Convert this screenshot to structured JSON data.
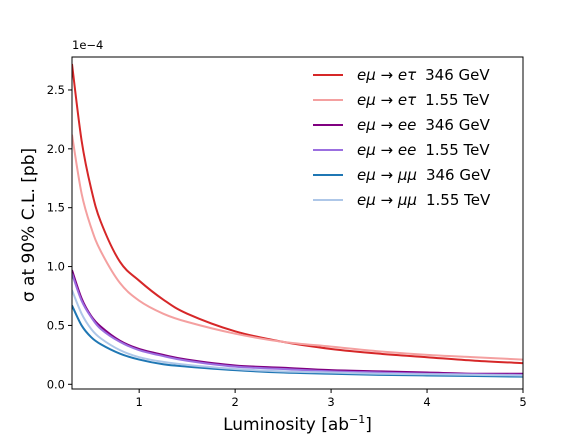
{
  "chart_data": {
    "type": "line",
    "title": "",
    "xlabel": "Luminosity [ab",
    "xlabel_sup": "−1",
    "xlabel_close": "]",
    "ylabel": "σ at 90% C.L. [pb]",
    "y_offset_text": "1e−4",
    "xlim": [
      0.3,
      5.0
    ],
    "ylim": [
      -0.04,
      2.78
    ],
    "xticks": [
      1,
      2,
      3,
      4,
      5
    ],
    "xtick_labels": [
      "1",
      "2",
      "3",
      "4",
      "5"
    ],
    "yticks": [
      0.0,
      0.5,
      1.0,
      1.5,
      2.0,
      2.5
    ],
    "ytick_labels": [
      "0.0",
      "0.5",
      "1.0",
      "1.5",
      "2.0",
      "2.5"
    ],
    "grid": false,
    "legend_position": "top-right",
    "x": [
      0.3,
      0.4,
      0.5,
      0.6,
      0.8,
      1.0,
      1.25,
      1.5,
      2.0,
      2.5,
      3.0,
      3.5,
      4.0,
      4.5,
      5.0
    ],
    "series": [
      {
        "process": "eμ → eτ",
        "energy": "346 GeV",
        "color": "#d62728",
        "values": [
          2.72,
          2.07,
          1.66,
          1.38,
          1.04,
          0.88,
          0.72,
          0.6,
          0.45,
          0.36,
          0.3,
          0.26,
          0.23,
          0.2,
          0.18
        ]
      },
      {
        "process": "eμ → eτ",
        "energy": "1.55 TeV",
        "color": "#f4a0a0",
        "values": [
          2.12,
          1.62,
          1.33,
          1.13,
          0.86,
          0.71,
          0.6,
          0.53,
          0.43,
          0.36,
          0.32,
          0.28,
          0.25,
          0.23,
          0.21
        ]
      },
      {
        "process": "eμ → ee",
        "energy": "346 GeV",
        "color": "#800080",
        "values": [
          0.97,
          0.73,
          0.58,
          0.49,
          0.37,
          0.3,
          0.25,
          0.21,
          0.16,
          0.14,
          0.12,
          0.11,
          0.1,
          0.09,
          0.09
        ]
      },
      {
        "process": "eμ → ee",
        "energy": "1.55 TeV",
        "color": "#9b6fe0",
        "values": [
          0.94,
          0.71,
          0.57,
          0.47,
          0.36,
          0.29,
          0.24,
          0.2,
          0.15,
          0.13,
          0.11,
          0.1,
          0.09,
          0.085,
          0.08
        ]
      },
      {
        "process": "eμ → μμ",
        "energy": "346 GeV",
        "color": "#1f77b4",
        "values": [
          0.67,
          0.5,
          0.4,
          0.34,
          0.26,
          0.21,
          0.17,
          0.15,
          0.12,
          0.1,
          0.09,
          0.08,
          0.075,
          0.07,
          0.065
        ]
      },
      {
        "process": "eμ → μμ",
        "energy": "1.55 TeV",
        "color": "#aec7e8",
        "values": [
          0.8,
          0.6,
          0.47,
          0.39,
          0.29,
          0.23,
          0.19,
          0.165,
          0.13,
          0.11,
          0.1,
          0.09,
          0.085,
          0.08,
          0.075
        ]
      }
    ]
  }
}
